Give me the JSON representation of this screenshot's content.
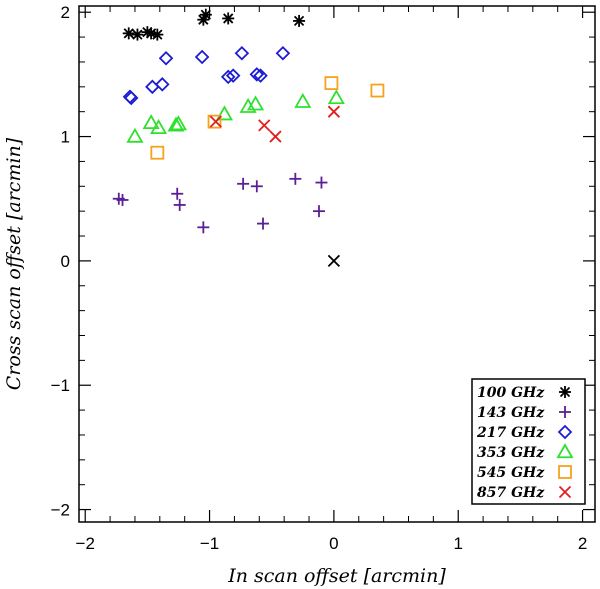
{
  "chart_data": {
    "type": "scatter",
    "xlabel": "In scan offset [arcmin]",
    "ylabel": "Cross scan offset [arcmin]",
    "xlim": [
      -2.05,
      2.1
    ],
    "ylim": [
      -2.1,
      2.05
    ],
    "x_ticks": [
      -2,
      -1,
      0,
      1,
      2
    ],
    "y_ticks": [
      -2,
      -1,
      0,
      1,
      2
    ],
    "x_tick_labels": [
      "−2",
      "−1",
      "0",
      "1",
      "2"
    ],
    "y_tick_labels": [
      "−2",
      "−1",
      "0",
      "1",
      "2"
    ],
    "grid": false,
    "legend_position": "bottom-right",
    "reference_point": {
      "x": 0.0,
      "y": 0.0,
      "marker": "x",
      "color": "#000000"
    },
    "series": [
      {
        "name": "100 GHz",
        "marker": "asterisk",
        "color": "#000000",
        "points": [
          [
            -1.65,
            1.83
          ],
          [
            -1.58,
            1.82
          ],
          [
            -1.5,
            1.84
          ],
          [
            -1.47,
            1.83
          ],
          [
            -1.42,
            1.82
          ],
          [
            -1.05,
            1.94
          ],
          [
            -1.03,
            1.98
          ],
          [
            -0.85,
            1.95
          ],
          [
            -0.28,
            1.93
          ]
        ]
      },
      {
        "name": "143 GHz",
        "marker": "plus",
        "color": "#5b1f96",
        "points": [
          [
            -1.73,
            0.5
          ],
          [
            -1.7,
            0.49
          ],
          [
            -1.26,
            0.54
          ],
          [
            -1.24,
            0.45
          ],
          [
            -1.05,
            0.27
          ],
          [
            -0.73,
            0.62
          ],
          [
            -0.62,
            0.6
          ],
          [
            -0.57,
            0.3
          ],
          [
            -0.31,
            0.66
          ],
          [
            -0.1,
            0.63
          ],
          [
            -0.12,
            0.4
          ]
        ]
      },
      {
        "name": "217 GHz",
        "marker": "diamond",
        "color": "#1c1cd4",
        "points": [
          [
            -1.64,
            1.32
          ],
          [
            -1.63,
            1.31
          ],
          [
            -1.46,
            1.4
          ],
          [
            -1.38,
            1.42
          ],
          [
            -1.35,
            1.63
          ],
          [
            -1.06,
            1.64
          ],
          [
            -0.85,
            1.48
          ],
          [
            -0.81,
            1.49
          ],
          [
            -0.74,
            1.67
          ],
          [
            -0.62,
            1.5
          ],
          [
            -0.59,
            1.49
          ],
          [
            -0.41,
            1.67
          ]
        ]
      },
      {
        "name": "353 GHz",
        "marker": "triangle",
        "color": "#2fe02f",
        "points": [
          [
            -1.6,
            1.0
          ],
          [
            -1.47,
            1.11
          ],
          [
            -1.41,
            1.07
          ],
          [
            -1.27,
            1.09
          ],
          [
            -1.25,
            1.1
          ],
          [
            -0.88,
            1.18
          ],
          [
            -0.69,
            1.24
          ],
          [
            -0.63,
            1.26
          ],
          [
            -0.25,
            1.28
          ],
          [
            0.02,
            1.31
          ]
        ]
      },
      {
        "name": "545 GHz",
        "marker": "square",
        "color": "#f5a31c",
        "points": [
          [
            -1.42,
            0.87
          ],
          [
            -0.96,
            1.12
          ],
          [
            -0.02,
            1.43
          ],
          [
            0.35,
            1.37
          ]
        ]
      },
      {
        "name": "857 GHz",
        "marker": "x",
        "color": "#e41e1e",
        "points": [
          [
            -0.95,
            1.12
          ],
          [
            -0.56,
            1.09
          ],
          [
            -0.47,
            1.0
          ],
          [
            0.0,
            1.2
          ]
        ]
      }
    ]
  }
}
